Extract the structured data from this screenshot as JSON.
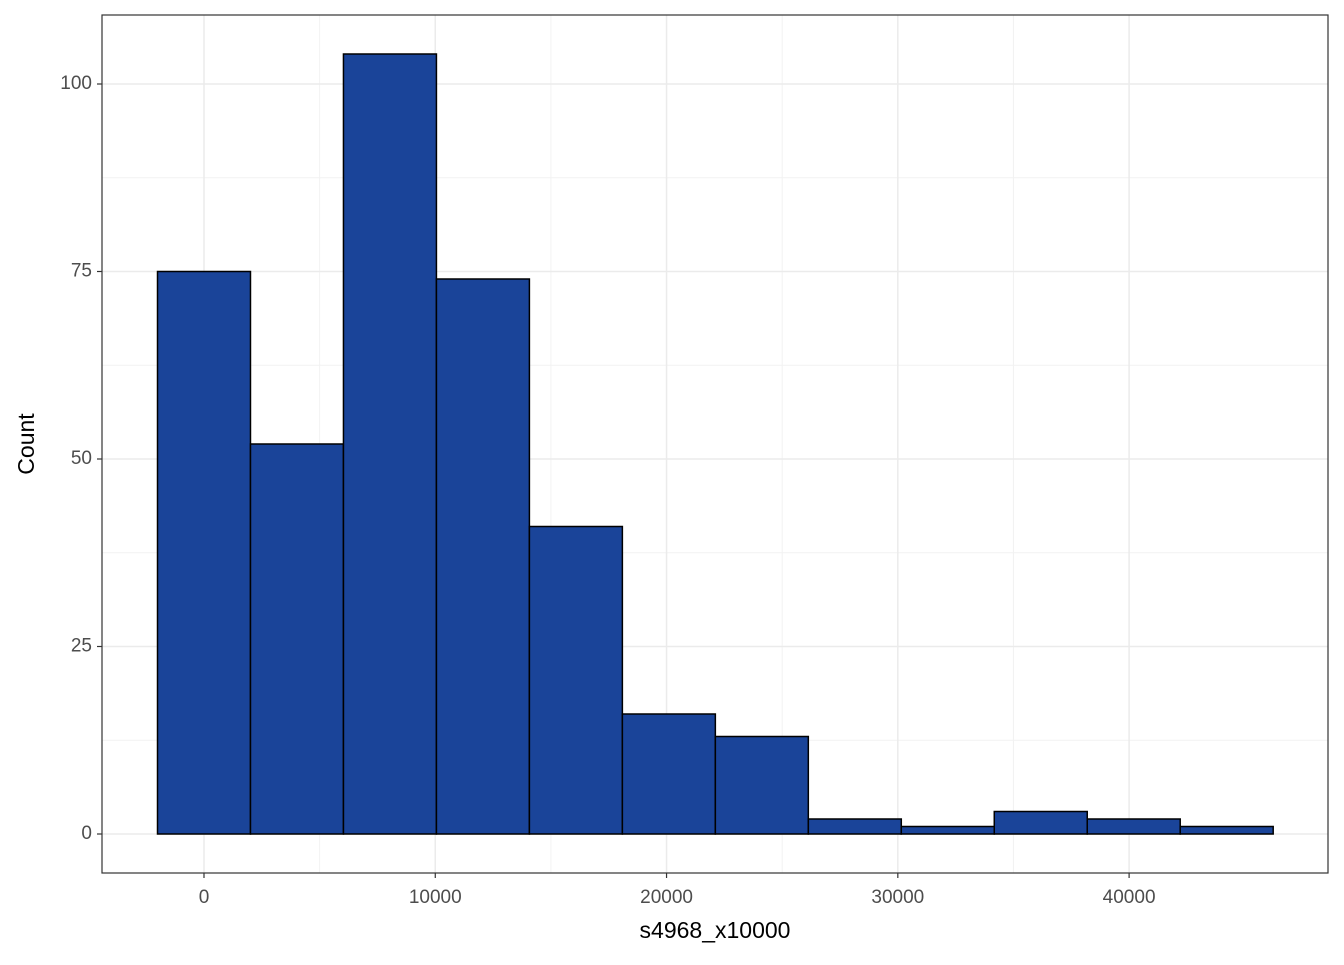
{
  "chart_data": {
    "type": "histogram",
    "x_label": "s4968_x10000",
    "y_label": "Count",
    "bins": [
      -2010,
      2010,
      6030,
      10050,
      14070,
      18090,
      22110,
      26130,
      30150,
      34170,
      38190,
      42210,
      46230
    ],
    "values": [
      75,
      52,
      104,
      74,
      41,
      16,
      13,
      2,
      1,
      3,
      2,
      1
    ],
    "color": "#1a4499",
    "xlim": [
      -4410,
      48600
    ],
    "xticks": [
      0,
      10000,
      20000,
      30000,
      40000
    ],
    "ylim": [
      -5.2,
      109.2
    ],
    "yticks": [
      0,
      25,
      50,
      75,
      100
    ],
    "grid": true
  }
}
